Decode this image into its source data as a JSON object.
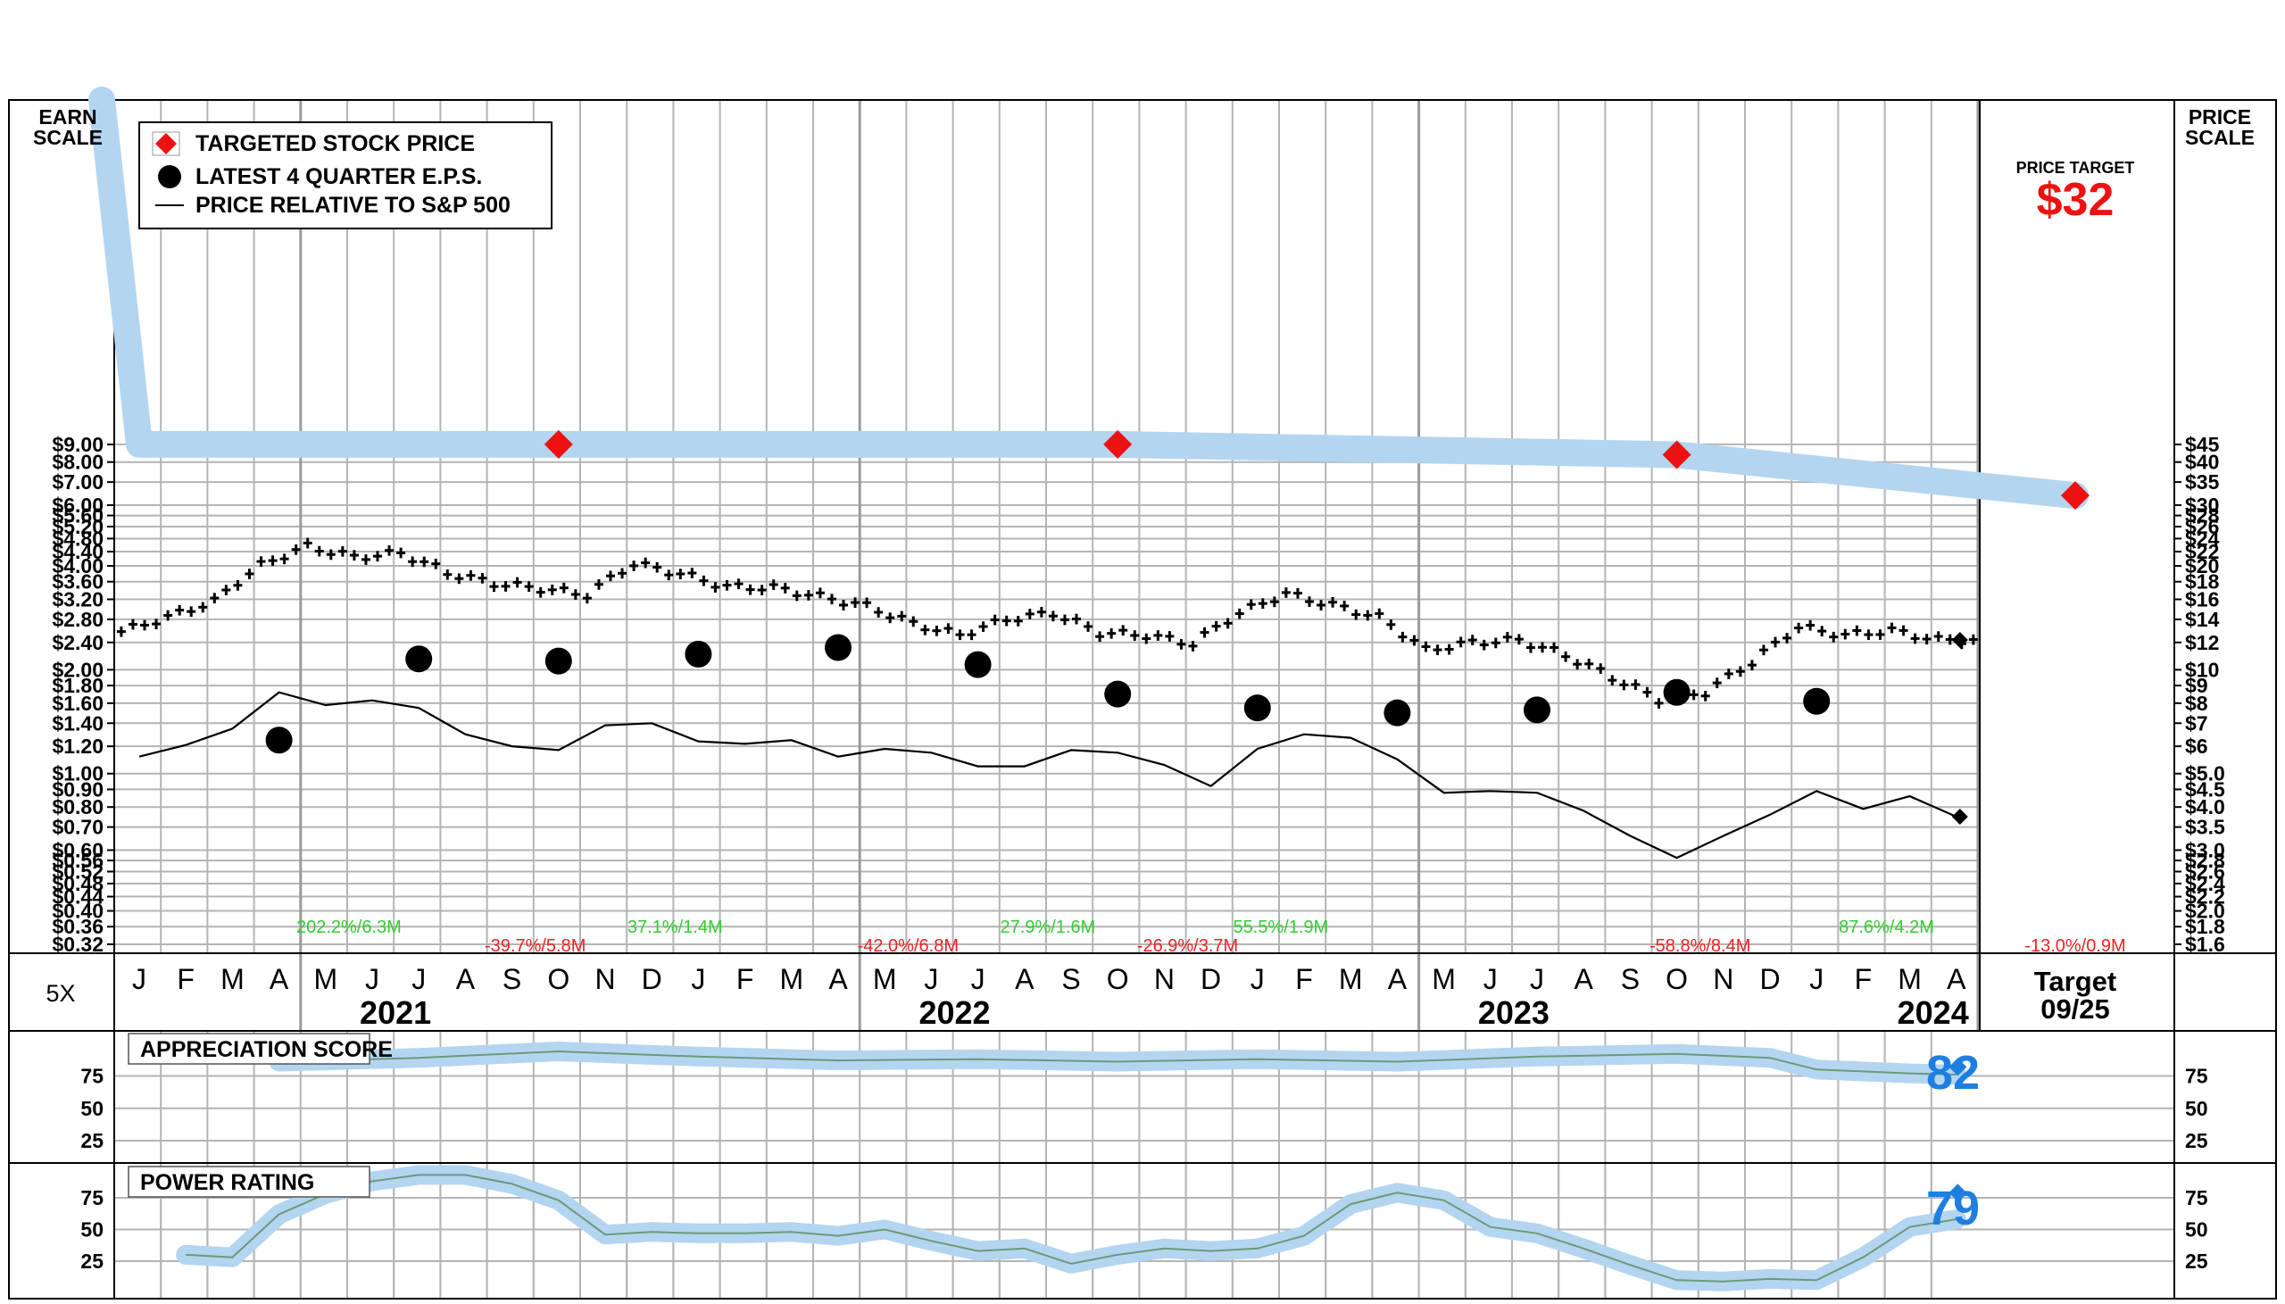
{
  "legend": {
    "targeted_stock_price": "TARGETED STOCK PRICE",
    "latest_eps": "LATEST 4 QUARTER E.P.S.",
    "price_relative": "PRICE RELATIVE TO S&P 500"
  },
  "axis": {
    "earn_scale_title": [
      "EARN",
      "SCALE"
    ],
    "price_scale_title": [
      "PRICE",
      "SCALE"
    ],
    "multiplier": "5X",
    "earn_ticks": [
      "$9.00",
      "$8.00",
      "$7.00",
      "$6.00",
      "$5.60",
      "$5.20",
      "$4.80",
      "$4.40",
      "$4.00",
      "$3.60",
      "$3.20",
      "$2.80",
      "$2.40",
      "$2.00",
      "$1.80",
      "$1.60",
      "$1.40",
      "$1.20",
      "$1.00",
      "$0.90",
      "$0.80",
      "$0.70",
      "$0.60",
      "$0.56",
      "$0.52",
      "$0.48",
      "$0.44",
      "$0.40",
      "$0.36",
      "$0.32"
    ],
    "price_ticks": [
      "$45",
      "$40",
      "$35",
      "$30",
      "$28",
      "$26",
      "$24",
      "$22",
      "$20",
      "$18",
      "$16",
      "$14",
      "$12",
      "$10",
      "$9",
      "$8",
      "$7",
      "$6",
      "$5.0",
      "$4.5",
      "$4.0",
      "$3.5",
      "$3.0",
      "$2.8",
      "$2.6",
      "$2.4",
      "$2.2",
      "$2.0",
      "$1.8",
      "$1.6"
    ]
  },
  "months": [
    "J",
    "F",
    "M",
    "A",
    "M",
    "J",
    "J",
    "A",
    "S",
    "O",
    "N",
    "D",
    "J",
    "F",
    "M",
    "A",
    "M",
    "J",
    "J",
    "A",
    "S",
    "O",
    "N",
    "D",
    "J",
    "F",
    "M",
    "A",
    "M",
    "J",
    "J",
    "A",
    "S",
    "O",
    "N",
    "D",
    "J",
    "F",
    "M",
    "A"
  ],
  "years": [
    "2021",
    "2022",
    "2023",
    "2024"
  ],
  "target_column": {
    "label": "Target",
    "date": "09/25"
  },
  "price_target": {
    "label": "PRICE TARGET",
    "value": "$32"
  },
  "volume_notes": [
    {
      "text": "202.2%/6.3M",
      "dir": "up"
    },
    {
      "text": "-39.7%/5.8M",
      "dir": "down"
    },
    {
      "text": "37.1%/1.4M",
      "dir": "up"
    },
    {
      "text": "-42.0%/6.8M",
      "dir": "down"
    },
    {
      "text": "27.9%/1.6M",
      "dir": "up"
    },
    {
      "text": "-26.9%/3.7M",
      "dir": "down"
    },
    {
      "text": "55.5%/1.9M",
      "dir": "up"
    },
    {
      "text": "-58.8%/8.4M",
      "dir": "down"
    },
    {
      "text": "87.6%/4.2M",
      "dir": "up"
    },
    {
      "text": "-13.0%/0.9M",
      "dir": "down"
    }
  ],
  "appreciation": {
    "title": "APPRECIATION SCORE",
    "value": "82",
    "ticks": [
      "75",
      "50",
      "25"
    ]
  },
  "power": {
    "title": "POWER RATING",
    "value": "79",
    "ticks": [
      "75",
      "50",
      "25"
    ]
  },
  "colors": {
    "target_red": "#ee1111",
    "score_blue": "#1e7fe0",
    "band_blue": "#b3d5f0",
    "up_green": "#33cc33",
    "down_red": "#ee2222"
  },
  "chart_data": {
    "type": "line",
    "x_axis": "month index from Jan 2021 (0) to Apr 2024 (39); target date Sep 2025",
    "price_scale": "log",
    "price_ylim": [
      1.6,
      45
    ],
    "eps_ylim": [
      0.32,
      9.0
    ],
    "series": [
      {
        "name": "TARGETED STOCK PRICE",
        "points": [
          [
            0,
            45
          ],
          [
            9,
            45
          ],
          [
            21,
            45
          ],
          [
            33,
            42
          ],
          [
            42,
            32
          ]
        ]
      },
      {
        "name": "LATEST 4 QUARTER E.P.S.",
        "points": [
          [
            3,
            1.25
          ],
          [
            6,
            2.15
          ],
          [
            9,
            2.12
          ],
          [
            12,
            2.22
          ],
          [
            15,
            2.32
          ],
          [
            18,
            2.07
          ],
          [
            21,
            1.7
          ],
          [
            24,
            1.55
          ],
          [
            27,
            1.5
          ],
          [
            30,
            1.53
          ],
          [
            33,
            1.72
          ],
          [
            36,
            1.62
          ]
        ]
      },
      {
        "name": "Stock price (monthly)",
        "points": [
          [
            0,
            12.9
          ],
          [
            1,
            14.2
          ],
          [
            2,
            15.8
          ],
          [
            3,
            20.1
          ],
          [
            4,
            22.8
          ],
          [
            5,
            21.2
          ],
          [
            6,
            21.8
          ],
          [
            7,
            19.1
          ],
          [
            8,
            17.8
          ],
          [
            9,
            17.2
          ],
          [
            10,
            16.5
          ],
          [
            11,
            20.3
          ],
          [
            12,
            19.0
          ],
          [
            13,
            17.4
          ],
          [
            14,
            17.3
          ],
          [
            15,
            16.3
          ],
          [
            16,
            15.3
          ],
          [
            17,
            13.6
          ],
          [
            18,
            12.6
          ],
          [
            19,
            14.0
          ],
          [
            20,
            14.6
          ],
          [
            21,
            12.8
          ],
          [
            22,
            12.6
          ],
          [
            23,
            11.9
          ],
          [
            24,
            14.6
          ],
          [
            25,
            16.6
          ],
          [
            26,
            15.4
          ],
          [
            27,
            14.2
          ],
          [
            28,
            11.4
          ],
          [
            29,
            12.0
          ],
          [
            30,
            12.2
          ],
          [
            31,
            11.0
          ],
          [
            32,
            9.5
          ],
          [
            33,
            8.2
          ],
          [
            34,
            8.6
          ],
          [
            35,
            10.5
          ],
          [
            36,
            13.3
          ],
          [
            37,
            12.6
          ],
          [
            38,
            13.0
          ],
          [
            39,
            12.2
          ]
        ]
      },
      {
        "name": "PRICE RELATIVE TO S&P 500",
        "points": [
          [
            0,
            1.12
          ],
          [
            1,
            1.21
          ],
          [
            2,
            1.35
          ],
          [
            3,
            1.72
          ],
          [
            4,
            1.58
          ],
          [
            5,
            1.63
          ],
          [
            6,
            1.55
          ],
          [
            7,
            1.3
          ],
          [
            8,
            1.2
          ],
          [
            9,
            1.17
          ],
          [
            10,
            1.38
          ],
          [
            11,
            1.4
          ],
          [
            12,
            1.24
          ],
          [
            13,
            1.22
          ],
          [
            14,
            1.25
          ],
          [
            15,
            1.12
          ],
          [
            16,
            1.18
          ],
          [
            17,
            1.15
          ],
          [
            18,
            1.05
          ],
          [
            19,
            1.05
          ],
          [
            20,
            1.17
          ],
          [
            21,
            1.15
          ],
          [
            22,
            1.06
          ],
          [
            23,
            0.92
          ],
          [
            24,
            1.18
          ],
          [
            25,
            1.3
          ],
          [
            26,
            1.27
          ],
          [
            27,
            1.1
          ],
          [
            28,
            0.88
          ],
          [
            29,
            0.89
          ],
          [
            30,
            0.88
          ],
          [
            31,
            0.78
          ],
          [
            32,
            0.66
          ],
          [
            33,
            0.57
          ],
          [
            34,
            0.66
          ],
          [
            35,
            0.76
          ],
          [
            36,
            0.89
          ],
          [
            37,
            0.79
          ],
          [
            38,
            0.86
          ],
          [
            39,
            0.75
          ]
        ]
      },
      {
        "name": "APPRECIATION SCORE",
        "points": [
          [
            3,
            86
          ],
          [
            6,
            89
          ],
          [
            9,
            94
          ],
          [
            12,
            90
          ],
          [
            15,
            87
          ],
          [
            18,
            88
          ],
          [
            21,
            86
          ],
          [
            24,
            88
          ],
          [
            27,
            86
          ],
          [
            30,
            90
          ],
          [
            33,
            92
          ],
          [
            35,
            89
          ],
          [
            36,
            80
          ],
          [
            38,
            77
          ],
          [
            39,
            76
          ]
        ],
        "current": 82
      },
      {
        "name": "POWER RATING",
        "points": [
          [
            1,
            30
          ],
          [
            2,
            28
          ],
          [
            3,
            62
          ],
          [
            4,
            78
          ],
          [
            5,
            88
          ],
          [
            6,
            93
          ],
          [
            7,
            93
          ],
          [
            8,
            86
          ],
          [
            9,
            73
          ],
          [
            10,
            46
          ],
          [
            11,
            48
          ],
          [
            12,
            47
          ],
          [
            13,
            47
          ],
          [
            14,
            48
          ],
          [
            15,
            45
          ],
          [
            16,
            50
          ],
          [
            17,
            41
          ],
          [
            18,
            33
          ],
          [
            19,
            35
          ],
          [
            20,
            23
          ],
          [
            21,
            30
          ],
          [
            22,
            35
          ],
          [
            23,
            33
          ],
          [
            24,
            35
          ],
          [
            25,
            45
          ],
          [
            26,
            70
          ],
          [
            27,
            79
          ],
          [
            28,
            73
          ],
          [
            29,
            52
          ],
          [
            30,
            47
          ],
          [
            31,
            35
          ],
          [
            32,
            22
          ],
          [
            33,
            10
          ],
          [
            34,
            9
          ],
          [
            35,
            11
          ],
          [
            36,
            10
          ],
          [
            37,
            28
          ],
          [
            38,
            52
          ],
          [
            39,
            58
          ]
        ],
        "current": 79
      }
    ]
  }
}
